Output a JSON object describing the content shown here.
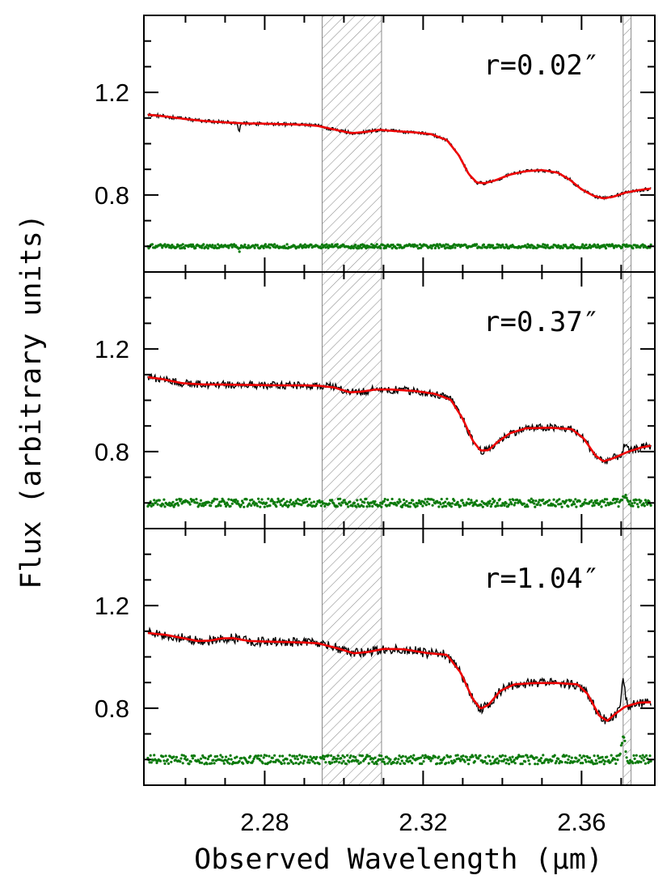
{
  "chart_data": {
    "type": "line",
    "xlabel": "Observed Wavelength (μm)",
    "ylabel": "Flux (arbitrary units)",
    "xlim": [
      2.2495,
      2.3785
    ],
    "ylim": [
      0.5,
      1.5
    ],
    "x_ticks": [
      2.28,
      2.32,
      2.36
    ],
    "x_tick_labels": [
      "2.28",
      "2.32",
      "2.36"
    ],
    "x_minor_step": 0.01,
    "y_ticks": [
      0.8,
      1.2
    ],
    "y_tick_labels": [
      "0.8",
      "1.2"
    ],
    "y_minor_step": 0.1,
    "grid": false,
    "legend": "none",
    "colors": {
      "data": "#000000",
      "model": "#ee0000",
      "residual": "#0b7a0b",
      "hatch": "#8a8a8a"
    },
    "excluded_regions": [
      [
        2.2945,
        2.3095
      ],
      [
        2.3705,
        2.3725
      ]
    ],
    "panels": [
      {
        "label": "r=0.02″",
        "noise": 0.004,
        "residual_scatter": 0.005,
        "residual_offset": 0.6,
        "model": [
          [
            2.2505,
            1.113
          ],
          [
            2.255,
            1.106
          ],
          [
            2.26,
            1.096
          ],
          [
            2.265,
            1.088
          ],
          [
            2.27,
            1.083
          ],
          [
            2.275,
            1.079
          ],
          [
            2.28,
            1.078
          ],
          [
            2.285,
            1.076
          ],
          [
            2.29,
            1.074
          ],
          [
            2.2935,
            1.069
          ],
          [
            2.2985,
            1.052
          ],
          [
            2.302,
            1.041
          ],
          [
            2.3055,
            1.046
          ],
          [
            2.309,
            1.054
          ],
          [
            2.313,
            1.049
          ],
          [
            2.318,
            1.044
          ],
          [
            2.322,
            1.037
          ],
          [
            2.326,
            1.014
          ],
          [
            2.329,
            0.955
          ],
          [
            2.3315,
            0.882
          ],
          [
            2.3335,
            0.849
          ],
          [
            2.3355,
            0.846
          ],
          [
            2.338,
            0.856
          ],
          [
            2.342,
            0.88
          ],
          [
            2.346,
            0.893
          ],
          [
            2.35,
            0.897
          ],
          [
            2.354,
            0.887
          ],
          [
            2.357,
            0.86
          ],
          [
            2.36,
            0.822
          ],
          [
            2.363,
            0.797
          ],
          [
            2.3655,
            0.787
          ],
          [
            2.368,
            0.793
          ],
          [
            2.371,
            0.809
          ],
          [
            2.3745,
            0.819
          ],
          [
            2.3775,
            0.825
          ]
        ],
        "dips": [
          [
            2.2735,
            -0.03
          ]
        ],
        "spikes": []
      },
      {
        "label": "r=0.37″",
        "noise": 0.009,
        "residual_scatter": 0.01,
        "residual_offset": 0.6,
        "model": [
          [
            2.2505,
            1.09
          ],
          [
            2.254,
            1.083
          ],
          [
            2.259,
            1.067
          ],
          [
            2.264,
            1.062
          ],
          [
            2.27,
            1.061
          ],
          [
            2.275,
            1.06
          ],
          [
            2.28,
            1.059
          ],
          [
            2.285,
            1.058
          ],
          [
            2.29,
            1.058
          ],
          [
            2.2935,
            1.057
          ],
          [
            2.2975,
            1.05
          ],
          [
            2.3015,
            1.031
          ],
          [
            2.3045,
            1.034
          ],
          [
            2.308,
            1.042
          ],
          [
            2.312,
            1.042
          ],
          [
            2.318,
            1.036
          ],
          [
            2.323,
            1.025
          ],
          [
            2.327,
            1.002
          ],
          [
            2.33,
            0.928
          ],
          [
            2.3325,
            0.843
          ],
          [
            2.3345,
            0.804
          ],
          [
            2.3365,
            0.806
          ],
          [
            2.339,
            0.84
          ],
          [
            2.342,
            0.872
          ],
          [
            2.346,
            0.891
          ],
          [
            2.352,
            0.893
          ],
          [
            2.3575,
            0.888
          ],
          [
            2.3605,
            0.852
          ],
          [
            2.3635,
            0.785
          ],
          [
            2.3655,
            0.762
          ],
          [
            2.368,
            0.774
          ],
          [
            2.3715,
            0.798
          ],
          [
            2.375,
            0.816
          ],
          [
            2.3775,
            0.823
          ]
        ],
        "dips": [],
        "spikes": [
          [
            2.371,
            0.03
          ]
        ]
      },
      {
        "label": "r=1.04″",
        "noise": 0.011,
        "residual_scatter": 0.011,
        "residual_offset": 0.6,
        "model": [
          [
            2.2505,
            1.093
          ],
          [
            2.255,
            1.086
          ],
          [
            2.26,
            1.071
          ],
          [
            2.263,
            1.062
          ],
          [
            2.266,
            1.063
          ],
          [
            2.269,
            1.072
          ],
          [
            2.272,
            1.073
          ],
          [
            2.276,
            1.062
          ],
          [
            2.28,
            1.06
          ],
          [
            2.285,
            1.058
          ],
          [
            2.29,
            1.056
          ],
          [
            2.2935,
            1.053
          ],
          [
            2.2985,
            1.033
          ],
          [
            2.3025,
            1.014
          ],
          [
            2.306,
            1.019
          ],
          [
            2.31,
            1.031
          ],
          [
            2.315,
            1.03
          ],
          [
            2.321,
            1.015
          ],
          [
            2.326,
            1.008
          ],
          [
            2.3295,
            0.938
          ],
          [
            2.3325,
            0.837
          ],
          [
            2.3345,
            0.798
          ],
          [
            2.3365,
            0.813
          ],
          [
            2.3395,
            0.868
          ],
          [
            2.343,
            0.893
          ],
          [
            2.348,
            0.898
          ],
          [
            2.354,
            0.898
          ],
          [
            2.359,
            0.893
          ],
          [
            2.3615,
            0.856
          ],
          [
            2.3645,
            0.77
          ],
          [
            2.3665,
            0.751
          ],
          [
            2.3685,
            0.778
          ],
          [
            2.371,
            0.806
          ],
          [
            2.3745,
            0.822
          ],
          [
            2.3775,
            0.823
          ]
        ],
        "dips": [],
        "spikes": [
          [
            2.3705,
            0.12
          ]
        ]
      }
    ]
  }
}
